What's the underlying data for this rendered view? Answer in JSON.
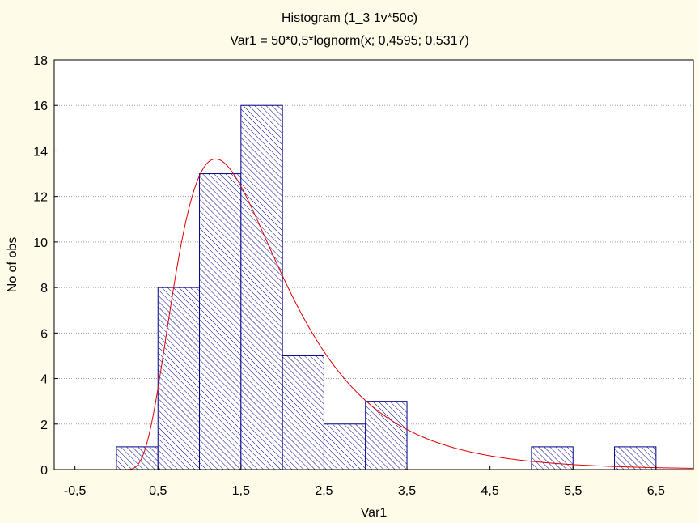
{
  "chart_data": {
    "type": "bar",
    "subtype": "histogram",
    "title": "Histogram (1_3 1v*50c)",
    "subtitle": "Var1 = 50*0,5*lognorm(x; 0,4595; 0,5317)",
    "xlabel": "Var1",
    "ylabel": "No of obs",
    "xlim": [
      -0.75,
      6.95
    ],
    "ylim": [
      0,
      18
    ],
    "x_ticks": [
      -0.5,
      0.5,
      1.5,
      2.5,
      3.5,
      4.5,
      5.5,
      6.5
    ],
    "x_tick_labels": [
      "-0,5",
      "0,5",
      "1,5",
      "2,5",
      "3,5",
      "4,5",
      "5,5",
      "6,5"
    ],
    "y_ticks": [
      0,
      2,
      4,
      6,
      8,
      10,
      12,
      14,
      16,
      18
    ],
    "y_tick_labels": [
      "0",
      "2",
      "4",
      "6",
      "8",
      "10",
      "12",
      "14",
      "16",
      "18"
    ],
    "grid": true,
    "bin_width": 0.5,
    "bins": [
      {
        "start": 0.0,
        "end": 0.5,
        "count": 1
      },
      {
        "start": 0.5,
        "end": 1.0,
        "count": 8
      },
      {
        "start": 1.0,
        "end": 1.5,
        "count": 13
      },
      {
        "start": 1.5,
        "end": 2.0,
        "count": 16
      },
      {
        "start": 2.0,
        "end": 2.5,
        "count": 5
      },
      {
        "start": 2.5,
        "end": 3.0,
        "count": 2
      },
      {
        "start": 3.0,
        "end": 3.5,
        "count": 3
      },
      {
        "start": 5.0,
        "end": 5.5,
        "count": 1
      },
      {
        "start": 6.0,
        "end": 6.5,
        "count": 1
      }
    ],
    "fit_curve": {
      "distribution": "lognormal",
      "scale": 25,
      "mu": 0.4595,
      "sigma": 0.5317
    },
    "colors": {
      "background": "#fffbe9",
      "plot_background": "#ffffff",
      "bar_fill": "#ffffff",
      "bar_hatch": "#00008b",
      "bar_edge": "#00008b",
      "curve": "#dd0000",
      "grid": "#a0a0a0"
    }
  }
}
